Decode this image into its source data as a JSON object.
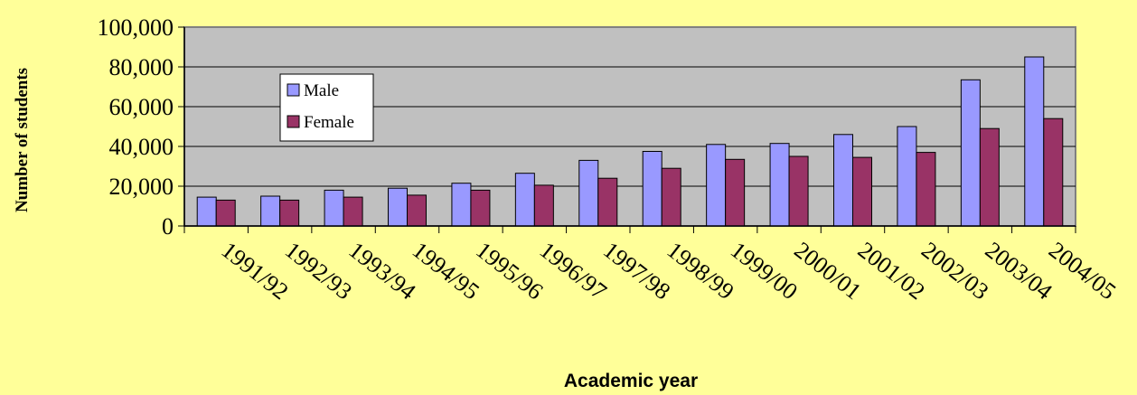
{
  "chart_data": {
    "type": "bar",
    "title": "",
    "xlabel": "Academic year",
    "ylabel": "Number of students",
    "ylim": [
      0,
      100000
    ],
    "yticks": [
      "0",
      "20,000",
      "40,000",
      "60,000",
      "80,000",
      "100,000"
    ],
    "ytick_values": [
      0,
      20000,
      40000,
      60000,
      80000,
      100000
    ],
    "grid": true,
    "legend_position": "upper-left",
    "categories": [
      "1991/92",
      "1992/93",
      "1993/94",
      "1994/95",
      "1995/96",
      "1996/97",
      "1997/98",
      "1998/99",
      "1999/00",
      "2000/01",
      "2001/02",
      "2002/03",
      "2003/04",
      "2004/05"
    ],
    "series": [
      {
        "name": "Male",
        "color": "#9999FF",
        "values": [
          14500,
          15000,
          18000,
          19000,
          21500,
          26500,
          33000,
          37500,
          41000,
          41500,
          46000,
          50000,
          73500,
          85000
        ]
      },
      {
        "name": "Female",
        "color": "#993366",
        "values": [
          13000,
          13000,
          14500,
          15500,
          18000,
          20500,
          24000,
          29000,
          33500,
          35000,
          34500,
          37000,
          49000,
          54000
        ]
      }
    ],
    "plot_background": "#C0C0C0",
    "page_background": "#FFFF99"
  }
}
